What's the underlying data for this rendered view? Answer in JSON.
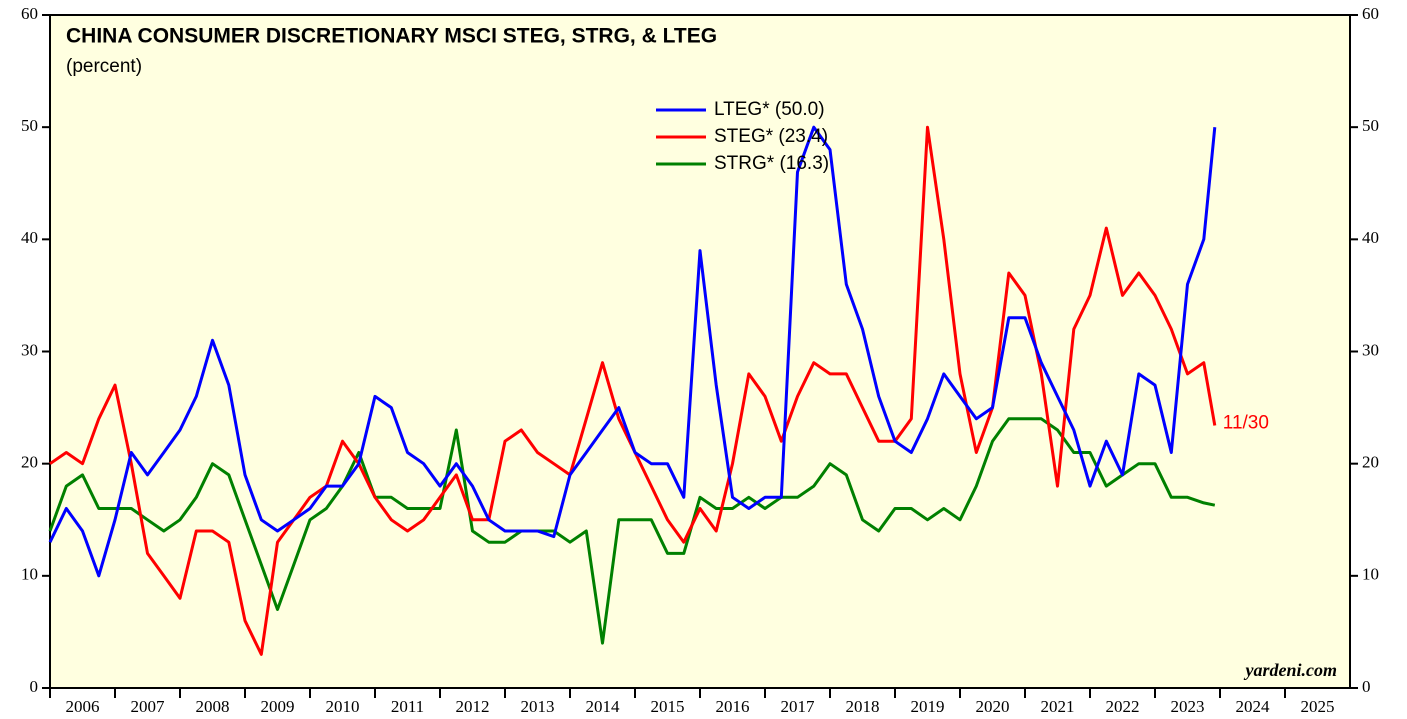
{
  "chart_data": {
    "type": "line",
    "title": "CHINA CONSUMER DISCRETIONARY MSCI STEG, STRG, & LTEG",
    "subtitle": "(percent)",
    "annotation": "11/30",
    "source": "yardeni.com",
    "legend": "top-center",
    "xlim": [
      2006,
      2026
    ],
    "xticks": [
      {
        "value": 2006,
        "label": "2006"
      },
      {
        "value": 2007,
        "label": "2007"
      },
      {
        "value": 2008,
        "label": "2008"
      },
      {
        "value": 2009,
        "label": "2009"
      },
      {
        "value": 2010,
        "label": "2010"
      },
      {
        "value": 2011,
        "label": "2011"
      },
      {
        "value": 2012,
        "label": "2012"
      },
      {
        "value": 2013,
        "label": "2013"
      },
      {
        "value": 2014,
        "label": "2014"
      },
      {
        "value": 2015,
        "label": "2015"
      },
      {
        "value": 2016,
        "label": "2016"
      },
      {
        "value": 2017,
        "label": "2017"
      },
      {
        "value": 2018,
        "label": "2018"
      },
      {
        "value": 2019,
        "label": "2019"
      },
      {
        "value": 2020,
        "label": "2020"
      },
      {
        "value": 2021,
        "label": "2021"
      },
      {
        "value": 2022,
        "label": "2022"
      },
      {
        "value": 2023,
        "label": "2023"
      },
      {
        "value": 2024,
        "label": "2024"
      },
      {
        "value": 2025,
        "label": "2025"
      }
    ],
    "ylim": [
      0,
      60
    ],
    "yticks": [
      0,
      10,
      20,
      30,
      40,
      50,
      60
    ],
    "x": [
      2006,
      2006.25,
      2006.5,
      2006.75,
      2007,
      2007.25,
      2007.5,
      2007.75,
      2008,
      2008.25,
      2008.5,
      2008.75,
      2009,
      2009.25,
      2009.5,
      2009.75,
      2010,
      2010.25,
      2010.5,
      2010.75,
      2011,
      2011.25,
      2011.5,
      2011.75,
      2012,
      2012.25,
      2012.5,
      2012.75,
      2013,
      2013.25,
      2013.5,
      2013.75,
      2014,
      2014.25,
      2014.5,
      2014.75,
      2015,
      2015.25,
      2015.5,
      2015.75,
      2016,
      2016.25,
      2016.5,
      2016.75,
      2017,
      2017.25,
      2017.5,
      2017.75,
      2018,
      2018.25,
      2018.5,
      2018.75,
      2019,
      2019.25,
      2019.5,
      2019.75,
      2020,
      2020.25,
      2020.5,
      2020.75,
      2021,
      2021.25,
      2021.5,
      2021.75,
      2022,
      2022.25,
      2022.5,
      2022.75,
      2023,
      2023.25,
      2023.5,
      2023.75,
      2023.92
    ],
    "series": [
      {
        "name": "LTEG* (50.0)",
        "color": "#0000ff",
        "values": [
          13,
          16,
          14,
          10,
          15,
          21,
          19,
          21,
          23,
          26,
          31,
          27,
          19,
          15,
          14,
          15,
          16,
          18,
          18,
          20,
          26,
          25,
          21,
          20,
          18,
          20,
          18,
          15,
          14,
          14,
          14,
          13.5,
          19,
          21,
          23,
          25,
          21,
          20,
          20,
          17,
          39,
          27,
          17,
          16,
          17,
          17,
          46,
          50,
          48,
          36,
          32,
          26,
          22,
          21,
          24,
          28,
          26,
          24,
          25,
          33,
          33,
          29,
          26,
          23,
          18,
          22,
          19,
          28,
          27,
          21,
          36,
          40,
          50
        ]
      },
      {
        "name": "STEG* (23.4)",
        "color": "#ff0000",
        "values": [
          20,
          21,
          20,
          24,
          27,
          20,
          12,
          10,
          8,
          14,
          14,
          13,
          6,
          3,
          13,
          15,
          17,
          18,
          22,
          20,
          17,
          15,
          14,
          15,
          17,
          19,
          15,
          15,
          22,
          23,
          21,
          20,
          19,
          24,
          29,
          24,
          21,
          18,
          15,
          13,
          16,
          14,
          20,
          28,
          26,
          22,
          26,
          29,
          28,
          28,
          25,
          22,
          22,
          24,
          50,
          40,
          28,
          21,
          25,
          37,
          35,
          28,
          18,
          32,
          35,
          41,
          35,
          37,
          35,
          32,
          28,
          29,
          23.4
        ]
      },
      {
        "name": "STRG* (16.3)",
        "color": "#008000",
        "values": [
          14,
          18,
          19,
          16,
          16,
          16,
          15,
          14,
          15,
          17,
          20,
          19,
          15,
          11,
          7,
          11,
          15,
          16,
          18,
          21,
          17,
          17,
          16,
          16,
          16,
          23,
          14,
          13,
          13,
          14,
          14,
          14,
          13,
          14,
          4,
          15,
          15,
          15,
          12,
          12,
          17,
          16,
          16,
          17,
          16,
          17,
          17,
          18,
          20,
          19,
          15,
          14,
          16,
          16,
          15,
          16,
          15,
          18,
          22,
          24,
          24,
          24,
          23,
          21,
          21,
          18,
          19,
          20,
          20,
          17,
          17,
          16.5,
          16.3
        ]
      }
    ]
  }
}
